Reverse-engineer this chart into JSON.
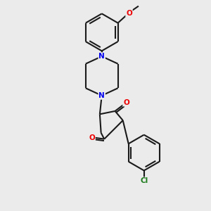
{
  "bg_color": "#ebebeb",
  "bond_color": "#1a1a1a",
  "N_color": "#0000ee",
  "O_color": "#ee0000",
  "Cl_color": "#1a7a1a",
  "line_width": 1.5,
  "figsize": [
    3.0,
    3.0
  ],
  "dpi": 100,
  "xlim": [
    -2.5,
    2.5
  ],
  "ylim": [
    -4.0,
    4.5
  ]
}
